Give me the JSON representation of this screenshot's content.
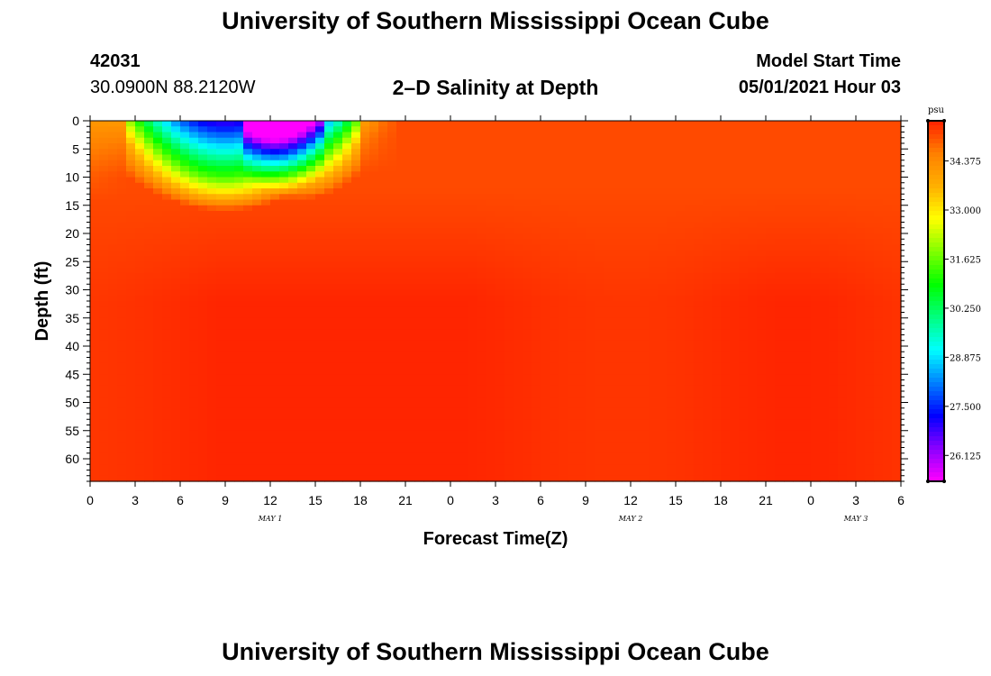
{
  "header": {
    "title": "University of Southern Mississippi Ocean Cube",
    "station_id": "42031",
    "station_coords": "30.0900N  88.2120W",
    "model_start_label": "Model Start Time",
    "model_start_value": "05/01/2021 Hour 03"
  },
  "footer": {
    "title": "University of Southern Mississippi Ocean Cube"
  },
  "chart_data": {
    "type": "heatmap",
    "title": "2–D Salinity at Depth",
    "xlabel": "Forecast Time(Z)",
    "ylabel": "Depth (ft)",
    "x_tick_labels": [
      "0",
      "3",
      "6",
      "9",
      "12",
      "15",
      "18",
      "21",
      "0",
      "3",
      "6",
      "9",
      "12",
      "15",
      "18",
      "21",
      "0",
      "3",
      "6"
    ],
    "x_range_hours": [
      0,
      54
    ],
    "day_labels": [
      {
        "text": "MAY 1",
        "hour": 12
      },
      {
        "text": "MAY 2",
        "hour": 36
      },
      {
        "text": "MAY 3",
        "hour": 51
      }
    ],
    "y_tick_labels": [
      "0",
      "5",
      "10",
      "15",
      "20",
      "25",
      "30",
      "35",
      "40",
      "45",
      "50",
      "55",
      "60"
    ],
    "y_range_ft": [
      0,
      64
    ],
    "colorbar": {
      "unit": "psu",
      "range": [
        25.4,
        35.5
      ],
      "tick_labels": [
        "34.375",
        "33.000",
        "31.625",
        "30.250",
        "28.875",
        "27.500",
        "26.125"
      ],
      "tick_values": [
        34.375,
        33.0,
        31.625,
        30.25,
        28.875,
        27.5,
        26.125
      ],
      "colors": [
        "#ff00ff",
        "#8a00ff",
        "#0000ff",
        "#0080ff",
        "#00ffff",
        "#00ff80",
        "#00ff00",
        "#80ff00",
        "#ffff00",
        "#ffb000",
        "#ff8000",
        "#ff2000"
      ]
    },
    "field": {
      "background_psu": 35.1,
      "deep_psu": 35.45,
      "lens_1": {
        "center_hour": 9,
        "hour_halfwidth": 6.5,
        "min_psu": 26.8,
        "bottom_ft_center": 10,
        "bottom_ft_edge": 4
      },
      "lens_2": {
        "center_hour": 14,
        "hour_halfwidth": 4.2,
        "min_psu": 28.6,
        "bottom_ft_center": 8,
        "bottom_ft_edge": 3
      },
      "sharp_front_hour": 10.5
    }
  }
}
